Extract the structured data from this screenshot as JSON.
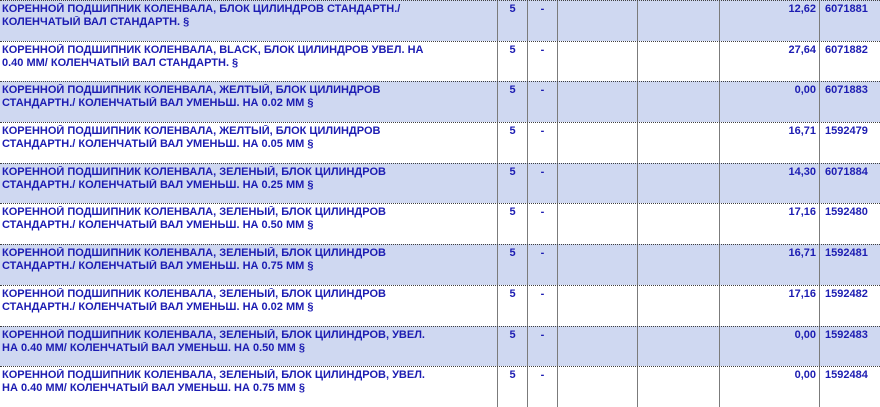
{
  "colors": {
    "row_alt_bg": "#cfd8f1",
    "row_bg": "#ffffff",
    "text_blue": "#1c1cb2",
    "grid_line": "#7b7b7b",
    "row_separator": "#404040"
  },
  "table": {
    "rows": [
      {
        "line1": "КОРЕННОЙ ПОДШИПНИК КОЛЕНВАЛА, БЛОК ЦИЛИНДРОВ СТАНДАРТН./",
        "line2": "КОЛЕНЧАТЫЙ ВАЛ СТАНДАРТН. §",
        "qty": "5",
        "dash": "-",
        "price": "12,62",
        "part_number": "6071881"
      },
      {
        "line1": "КОРЕННОЙ ПОДШИПНИК КОЛЕНВАЛА, BLACK, БЛОК ЦИЛИНДРОВ УВЕЛ. НА",
        "line2": "0.40 ММ/ КОЛЕНЧАТЫЙ ВАЛ СТАНДАРТН. §",
        "qty": "5",
        "dash": "-",
        "price": "27,64",
        "part_number": "6071882"
      },
      {
        "line1": "КОРЕННОЙ ПОДШИПНИК КОЛЕНВАЛА, ЖЕЛТЫЙ, БЛОК ЦИЛИНДРОВ",
        "line2": "СТАНДАРТН./ КОЛЕНЧАТЫЙ ВАЛ УМЕНЬШ. НА 0.02 ММ §",
        "qty": "5",
        "dash": "-",
        "price": "0,00",
        "part_number": "6071883"
      },
      {
        "line1": "КОРЕННОЙ ПОДШИПНИК КОЛЕНВАЛА, ЖЕЛТЫЙ, БЛОК ЦИЛИНДРОВ",
        "line2": "СТАНДАРТН./ КОЛЕНЧАТЫЙ ВАЛ УМЕНЬШ. НА 0.05 ММ §",
        "qty": "5",
        "dash": "-",
        "price": "16,71",
        "part_number": "1592479"
      },
      {
        "line1": "КОРЕННОЙ ПОДШИПНИК КОЛЕНВАЛА, ЗЕЛЕНЫЙ, БЛОК ЦИЛИНДРОВ",
        "line2": "СТАНДАРТН./ КОЛЕНЧАТЫЙ ВАЛ УМЕНЬШ. НА 0.25 ММ §",
        "qty": "5",
        "dash": "-",
        "price": "14,30",
        "part_number": "6071884"
      },
      {
        "line1": "КОРЕННОЙ ПОДШИПНИК КОЛЕНВАЛА, ЗЕЛЕНЫЙ, БЛОК ЦИЛИНДРОВ",
        "line2": "СТАНДАРТН./ КОЛЕНЧАТЫЙ ВАЛ УМЕНЬШ. НА 0.50 ММ §",
        "qty": "5",
        "dash": "-",
        "price": "17,16",
        "part_number": "1592480"
      },
      {
        "line1": "КОРЕННОЙ ПОДШИПНИК КОЛЕНВАЛА, ЗЕЛЕНЫЙ, БЛОК ЦИЛИНДРОВ",
        "line2": "СТАНДАРТН./ КОЛЕНЧАТЫЙ ВАЛ УМЕНЬШ. НА 0.75 ММ §",
        "qty": "5",
        "dash": "-",
        "price": "16,71",
        "part_number": "1592481"
      },
      {
        "line1": "КОРЕННОЙ ПОДШИПНИК КОЛЕНВАЛА, ЗЕЛЕНЫЙ, БЛОК ЦИЛИНДРОВ",
        "line2": "СТАНДАРТН./ КОЛЕНЧАТЫЙ ВАЛ УМЕНЬШ. НА 0.02 ММ §",
        "qty": "5",
        "dash": "-",
        "price": "17,16",
        "part_number": "1592482"
      },
      {
        "line1": "КОРЕННОЙ ПОДШИПНИК КОЛЕНВАЛА, ЗЕЛЕНЫЙ, БЛОК ЦИЛИНДРОВ, УВЕЛ.",
        "line2": "НА 0.40 ММ/ КОЛЕНЧАТЫЙ ВАЛ УМЕНЬШ. НА 0.50 ММ §",
        "qty": "5",
        "dash": "-",
        "price": "0,00",
        "part_number": "1592483"
      },
      {
        "line1": "КОРЕННОЙ ПОДШИПНИК КОЛЕНВАЛА, ЗЕЛЕНЫЙ, БЛОК ЦИЛИНДРОВ, УВЕЛ.",
        "line2": "НА 0.40 ММ/ КОЛЕНЧАТЫЙ ВАЛ УМЕНЬШ. НА 0.75 ММ §",
        "qty": "5",
        "dash": "-",
        "price": "0,00",
        "part_number": "1592484"
      }
    ]
  }
}
